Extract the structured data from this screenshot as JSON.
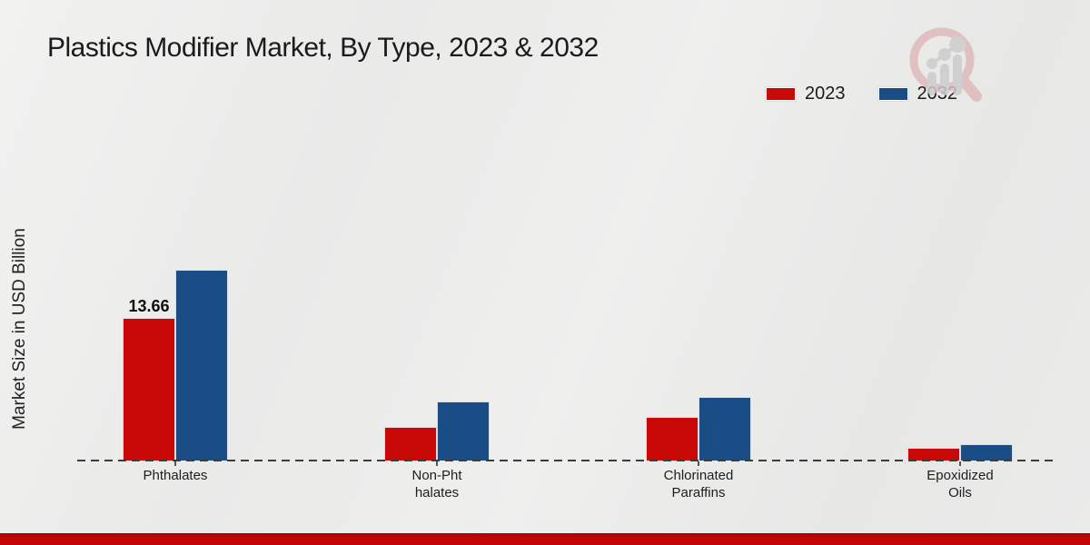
{
  "header": {
    "title": "Plastics Modifier Market, By Type, 2023 & 2032"
  },
  "chart_data": {
    "type": "bar",
    "title": "Plastics Modifier Market, By Type, 2023 & 2032",
    "xlabel": "",
    "ylabel": "Market Size in USD Billion",
    "categories": [
      "Phthalates",
      "Non-Phthalates",
      "Chlorinated Paraffins",
      "Epoxidized Oils"
    ],
    "category_label_lines": [
      [
        "Phthalates"
      ],
      [
        "Non-Pht",
        "halates"
      ],
      [
        "Chlorinated",
        "Paraffins"
      ],
      [
        "Epoxidized",
        "Oils"
      ]
    ],
    "series": [
      {
        "name": "2023",
        "color": "#c90808",
        "values": [
          13.66,
          3.2,
          4.2,
          1.2
        ]
      },
      {
        "name": "2032",
        "color": "#1a4d85",
        "values": [
          18.27,
          5.65,
          6.1,
          1.6
        ]
      }
    ],
    "bar_value_labels": [
      {
        "series": 0,
        "category": 0,
        "text": "13.66"
      }
    ],
    "ylim": [
      0,
      20
    ],
    "grid": false,
    "baseline_style": "dashed",
    "legend_position": "top-right"
  },
  "watermark": {
    "name": "magnifier-bar-chart-logo",
    "ring_color": "#dfb9ba",
    "bars_color": "#cccccc"
  },
  "footer": {
    "accent_color": "#c20606",
    "accent_dark": "#a30404"
  }
}
